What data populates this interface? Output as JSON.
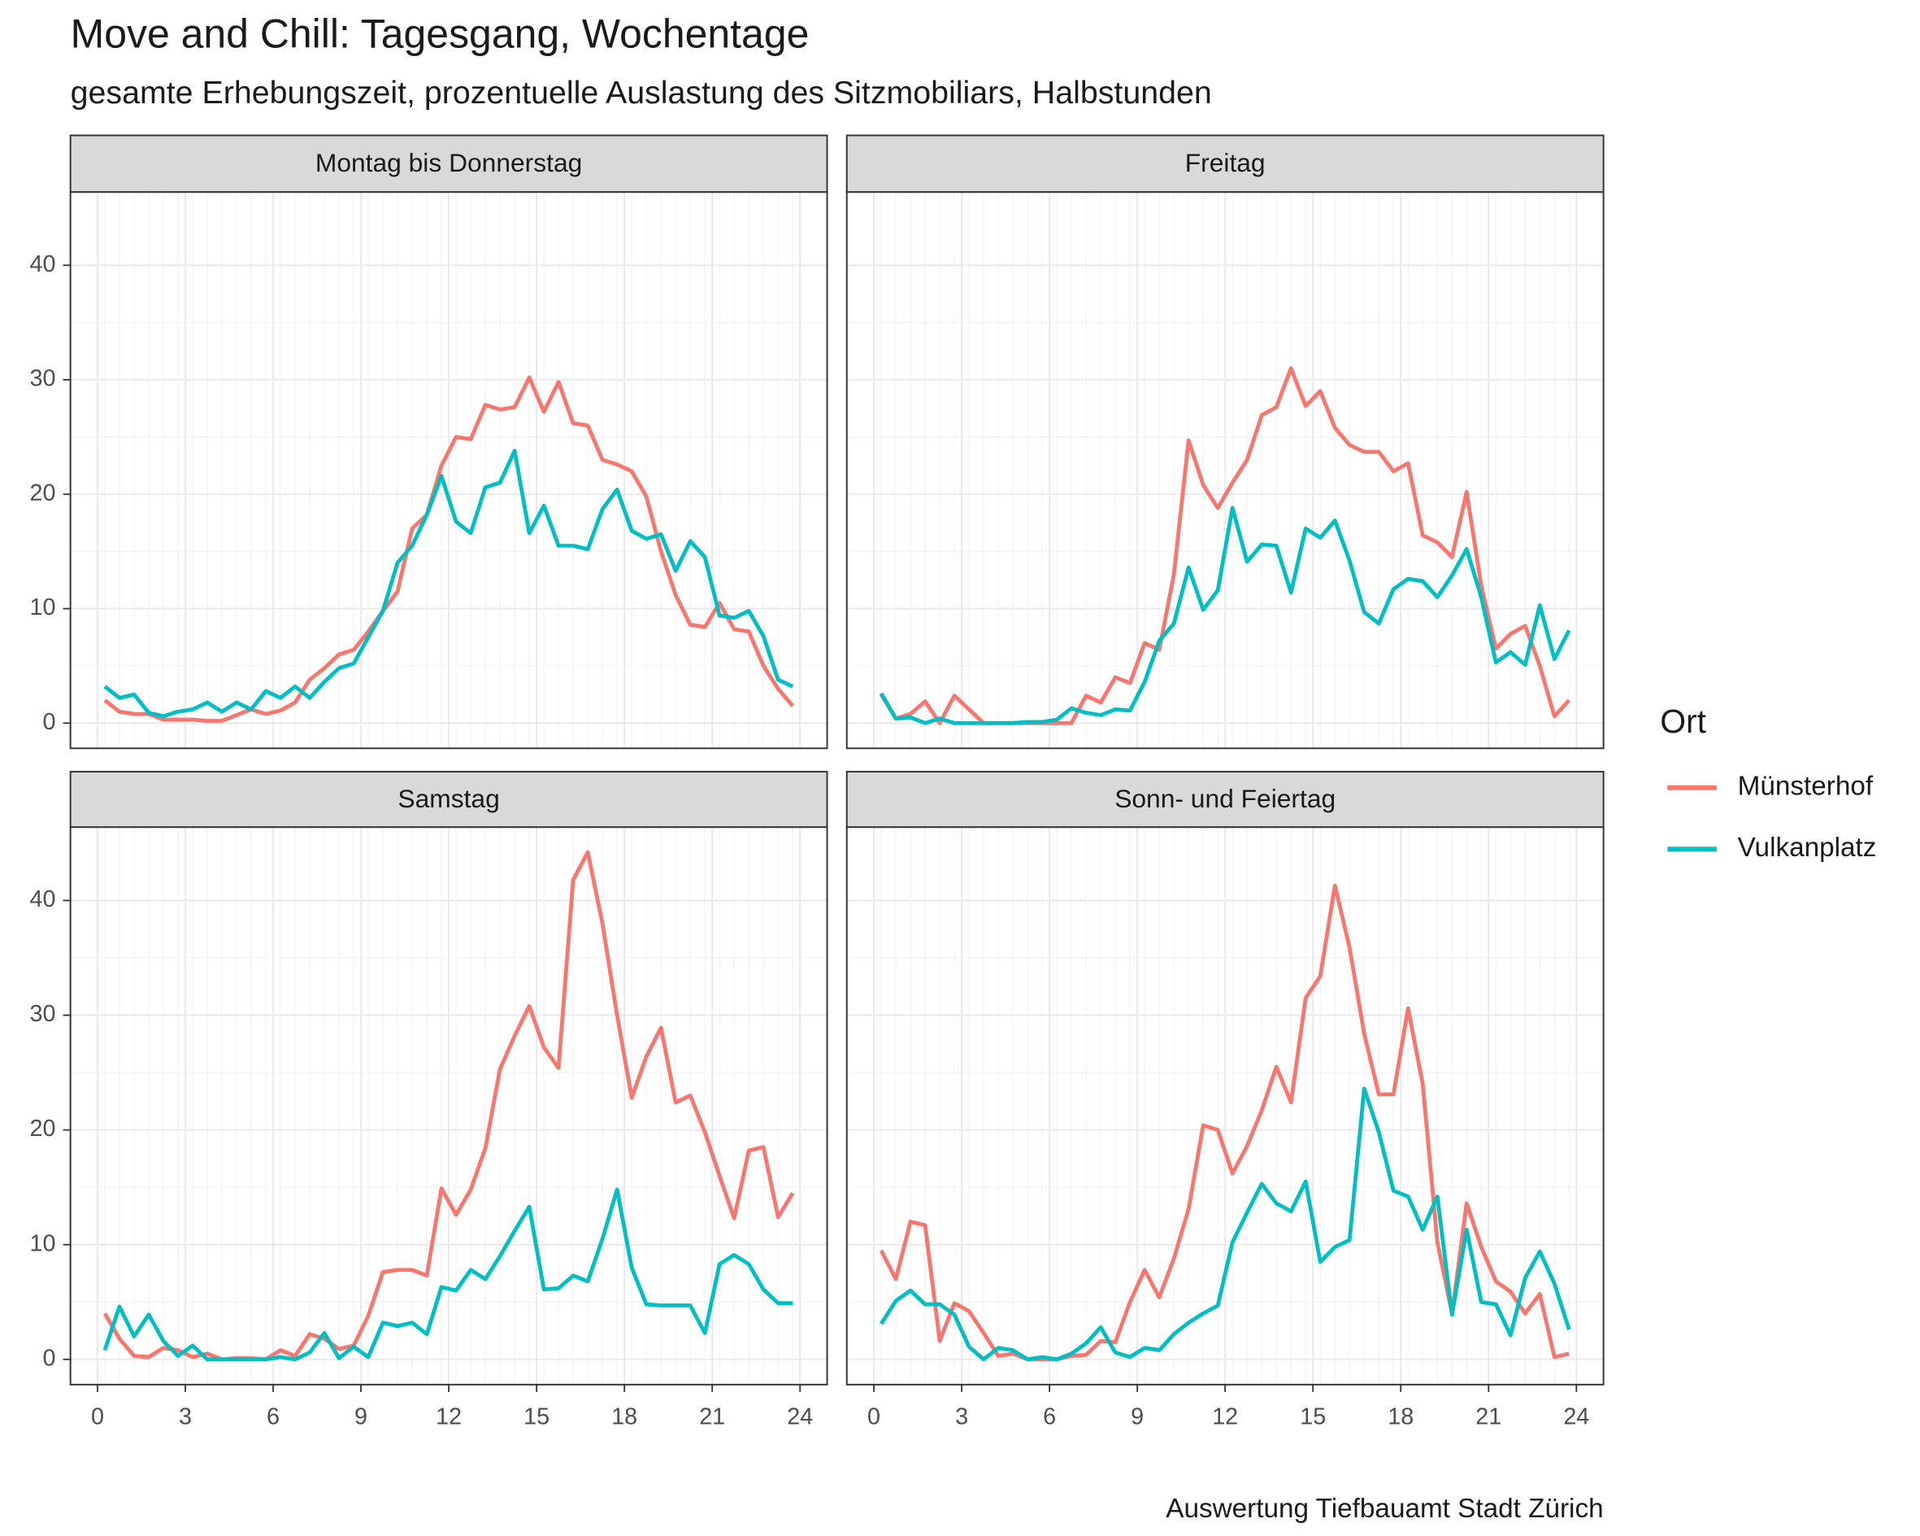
{
  "title": "Move and Chill: Tagesgang, Wochentage",
  "subtitle": "gesamte Erhebungszeit, prozentuelle Auslastung des Sitzmobiliars, Halbstunden",
  "caption": "Auswertung Tiefbauamt Stadt Zürich",
  "legend_title": "Ort",
  "chart_data": [
    {
      "type": "line",
      "title": "Montag bis Donnerstag",
      "grid": true,
      "x": [
        0.25,
        0.75,
        1.25,
        1.75,
        2.25,
        2.75,
        3.25,
        3.75,
        4.25,
        4.75,
        5.25,
        5.75,
        6.25,
        6.75,
        7.25,
        7.75,
        8.25,
        8.75,
        9.25,
        9.75,
        10.25,
        10.75,
        11.25,
        11.75,
        12.25,
        12.75,
        13.25,
        13.75,
        14.25,
        14.75,
        15.25,
        15.75,
        16.25,
        16.75,
        17.25,
        17.75,
        18.25,
        18.75,
        19.25,
        19.75,
        20.25,
        20.75,
        21.25,
        21.75,
        22.25,
        22.75,
        23.25,
        23.75
      ],
      "xlim": [
        -0.925,
        24.925
      ],
      "xticks": [
        0,
        3,
        6,
        9,
        12,
        15,
        18,
        21,
        24
      ],
      "ylim": [
        -2.2,
        46.4
      ],
      "yticks": [
        0,
        10,
        20,
        30,
        40
      ],
      "series": [
        {
          "name": "Münsterhof",
          "color": "#F8766D",
          "values": [
            2,
            1,
            0.8,
            0.8,
            0.3,
            0.3,
            0.3,
            0.2,
            0.2,
            0.7,
            1.2,
            0.8,
            1.1,
            1.8,
            3.8,
            4.8,
            6,
            6.4,
            8,
            9.8,
            11.5,
            17,
            18.2,
            22.5,
            25,
            24.8,
            27.8,
            27.4,
            27.6,
            30.2,
            27.2,
            29.8,
            26.2,
            26,
            23,
            22.6,
            22,
            19.8,
            15,
            11.2,
            8.6,
            8.4,
            10.5,
            8.2,
            8,
            5,
            3,
            1.5
          ]
        },
        {
          "name": "Vulkanplatz",
          "color": "#00BFC4",
          "values": [
            3.2,
            2.2,
            2.5,
            0.9,
            0.6,
            1,
            1.2,
            1.8,
            1,
            1.8,
            1.2,
            2.8,
            2.2,
            3.2,
            2.2,
            3.6,
            4.8,
            5.2,
            7.5,
            9.8,
            14,
            15.5,
            18.2,
            21.6,
            17.6,
            16.6,
            20.6,
            21,
            23.8,
            16.6,
            19,
            15.5,
            15.5,
            15.2,
            18.7,
            20.4,
            16.8,
            16.1,
            16.5,
            13.3,
            15.9,
            14.5,
            9.4,
            9.2,
            9.8,
            7.6,
            3.8,
            3.2
          ]
        }
      ]
    },
    {
      "type": "line",
      "title": "Freitag",
      "grid": true,
      "x": [
        0.25,
        0.75,
        1.25,
        1.75,
        2.25,
        2.75,
        3.25,
        3.75,
        4.25,
        4.75,
        5.25,
        5.75,
        6.25,
        6.75,
        7.25,
        7.75,
        8.25,
        8.75,
        9.25,
        9.75,
        10.25,
        10.75,
        11.25,
        11.75,
        12.25,
        12.75,
        13.25,
        13.75,
        14.25,
        14.75,
        15.25,
        15.75,
        16.25,
        16.75,
        17.25,
        17.75,
        18.25,
        18.75,
        19.25,
        19.75,
        20.25,
        20.75,
        21.25,
        21.75,
        22.25,
        22.75,
        23.25,
        23.75
      ],
      "xlim": [
        -0.925,
        24.925
      ],
      "xticks": [
        0,
        3,
        6,
        9,
        12,
        15,
        18,
        21,
        24
      ],
      "ylim": [
        -2.2,
        46.4
      ],
      "yticks": [
        0,
        10,
        20,
        30,
        40
      ],
      "series": [
        {
          "name": "Münsterhof",
          "color": "#F8766D",
          "values": [
            2.5,
            0.4,
            0.8,
            1.9,
            0,
            2.4,
            1.2,
            0,
            0,
            0,
            0,
            0,
            0,
            0,
            2.4,
            1.8,
            4,
            3.5,
            7,
            6.4,
            13,
            24.7,
            20.8,
            18.8,
            21,
            23,
            26.9,
            27.6,
            31,
            27.7,
            29,
            25.8,
            24.3,
            23.7,
            23.7,
            22,
            22.7,
            16.4,
            15.8,
            14.5,
            20.2,
            12,
            6.5,
            7.8,
            8.5,
            5,
            0.6,
            2
          ]
        },
        {
          "name": "Vulkanplatz",
          "color": "#00BFC4",
          "values": [
            2.6,
            0.4,
            0.5,
            0,
            0.4,
            0,
            0,
            0,
            0,
            0,
            0.1,
            0.1,
            0.3,
            1.3,
            0.9,
            0.7,
            1.2,
            1.1,
            3.6,
            7.2,
            8.7,
            13.6,
            9.9,
            11.6,
            18.8,
            14.1,
            15.6,
            15.5,
            11.4,
            17,
            16.2,
            17.7,
            14.2,
            9.7,
            8.7,
            11.7,
            12.6,
            12.4,
            11,
            12.9,
            15.2,
            11,
            5.3,
            6.2,
            5.1,
            10.3,
            5.6,
            8.1
          ]
        }
      ]
    },
    {
      "type": "line",
      "title": "Samstag",
      "grid": true,
      "x": [
        0.25,
        0.75,
        1.25,
        1.75,
        2.25,
        2.75,
        3.25,
        3.75,
        4.25,
        4.75,
        5.25,
        5.75,
        6.25,
        6.75,
        7.25,
        7.75,
        8.25,
        8.75,
        9.25,
        9.75,
        10.25,
        10.75,
        11.25,
        11.75,
        12.25,
        12.75,
        13.25,
        13.75,
        14.25,
        14.75,
        15.25,
        15.75,
        16.25,
        16.75,
        17.25,
        17.75,
        18.25,
        18.75,
        19.25,
        19.75,
        20.25,
        20.75,
        21.25,
        21.75,
        22.25,
        22.75,
        23.25,
        23.75
      ],
      "xlim": [
        -0.925,
        24.925
      ],
      "xticks": [
        0,
        3,
        6,
        9,
        12,
        15,
        18,
        21,
        24
      ],
      "ylim": [
        -2.2,
        46.4
      ],
      "yticks": [
        0,
        10,
        20,
        30,
        40
      ],
      "series": [
        {
          "name": "Münsterhof",
          "color": "#F8766D",
          "values": [
            4,
            1.8,
            0.3,
            0.2,
            1,
            0.8,
            0.2,
            0.5,
            0,
            0.1,
            0.1,
            0,
            0.8,
            0.3,
            2.2,
            1.8,
            0.9,
            1.2,
            3.8,
            7.6,
            7.8,
            7.8,
            7.3,
            14.9,
            12.6,
            14.8,
            18.4,
            25.3,
            28.2,
            30.8,
            27.2,
            25.4,
            41.8,
            44.2,
            38,
            30,
            22.8,
            26.4,
            28.9,
            22.4,
            23,
            19.8,
            16,
            12.3,
            18.2,
            18.5,
            12.4,
            14.5
          ]
        },
        {
          "name": "Vulkanplatz",
          "color": "#00BFC4",
          "values": [
            0.8,
            4.6,
            2,
            3.9,
            1.6,
            0.3,
            1.2,
            0,
            0,
            0,
            0,
            0,
            0.2,
            0,
            0.6,
            2.3,
            0.1,
            1.1,
            0.2,
            3.2,
            2.9,
            3.2,
            2.2,
            6.3,
            6,
            7.8,
            7,
            9,
            11.2,
            13.3,
            6.1,
            6.2,
            7.3,
            6.8,
            10.5,
            14.8,
            8,
            4.8,
            4.7,
            4.7,
            4.7,
            2.3,
            8.3,
            9.1,
            8.3,
            6.1,
            4.9,
            4.9
          ]
        }
      ]
    },
    {
      "type": "line",
      "title": "Sonn- und Feiertag",
      "grid": true,
      "x": [
        0.25,
        0.75,
        1.25,
        1.75,
        2.25,
        2.75,
        3.25,
        3.75,
        4.25,
        4.75,
        5.25,
        5.75,
        6.25,
        6.75,
        7.25,
        7.75,
        8.25,
        8.75,
        9.25,
        9.75,
        10.25,
        10.75,
        11.25,
        11.75,
        12.25,
        12.75,
        13.25,
        13.75,
        14.25,
        14.75,
        15.25,
        15.75,
        16.25,
        16.75,
        17.25,
        17.75,
        18.25,
        18.75,
        19.25,
        19.75,
        20.25,
        20.75,
        21.25,
        21.75,
        22.25,
        22.75,
        23.25,
        23.75
      ],
      "xlim": [
        -0.925,
        24.925
      ],
      "xticks": [
        0,
        3,
        6,
        9,
        12,
        15,
        18,
        21,
        24
      ],
      "ylim": [
        -2.2,
        46.4
      ],
      "yticks": [
        0,
        10,
        20,
        30,
        40
      ],
      "series": [
        {
          "name": "Münsterhof",
          "color": "#F8766D",
          "values": [
            9.5,
            7,
            12,
            11.7,
            1.6,
            4.9,
            4.2,
            2.3,
            0.3,
            0.5,
            0,
            0,
            0,
            0.3,
            0.4,
            1.6,
            1.5,
            5,
            7.8,
            5.4,
            8.8,
            13.1,
            20.4,
            20,
            16.2,
            18.6,
            21.7,
            25.5,
            22.4,
            31.5,
            33.4,
            41.3,
            35.9,
            28.4,
            23.1,
            23.1,
            30.6,
            24,
            10.2,
            4,
            13.6,
            9.8,
            6.8,
            5.9,
            4,
            5.7,
            0.2,
            0.5
          ]
        },
        {
          "name": "Vulkanplatz",
          "color": "#00BFC4",
          "values": [
            3.1,
            5.1,
            6,
            4.8,
            4.8,
            3.9,
            1.1,
            0,
            1,
            0.8,
            0,
            0.2,
            0,
            0.5,
            1.4,
            2.8,
            0.6,
            0.2,
            1,
            0.8,
            2.2,
            3.2,
            4,
            4.7,
            10.2,
            12.8,
            15.3,
            13.6,
            12.9,
            15.5,
            8.5,
            9.8,
            10.4,
            23.6,
            19.8,
            14.7,
            14.2,
            11.3,
            14.2,
            3.9,
            11.3,
            5,
            4.8,
            2.1,
            7.1,
            9.4,
            6.6,
            2.6
          ]
        }
      ]
    }
  ]
}
